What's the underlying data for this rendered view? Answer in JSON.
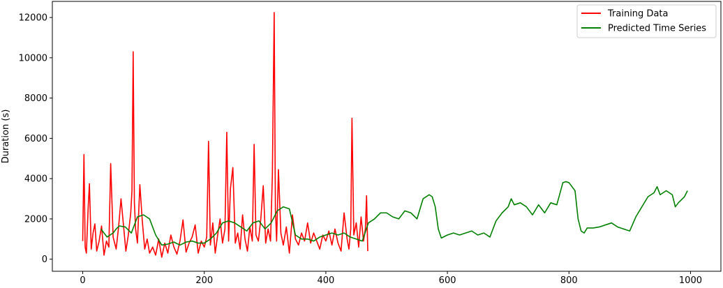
{
  "chart_data": {
    "type": "line",
    "title": "",
    "xlabel": "",
    "ylabel": "Duration (s)",
    "xlim": [
      -50,
      1050
    ],
    "ylim": [
      -600,
      12800
    ],
    "xticks": [
      0,
      200,
      400,
      600,
      800,
      1000
    ],
    "xtick_labels": [
      "0",
      "200",
      "400",
      "600",
      "800",
      "1000"
    ],
    "yticks": [
      0,
      2000,
      4000,
      6000,
      8000,
      10000,
      12000
    ],
    "ytick_labels": [
      "0",
      "2000",
      "4000",
      "6000",
      "8000",
      "10000",
      "12000"
    ],
    "grid": false,
    "legend_position": "top-right",
    "series": [
      {
        "name": "Training Data",
        "color": "#ff0000",
        "x": [
          0,
          2,
          4,
          6,
          9,
          11,
          14,
          17,
          20,
          23,
          27,
          31,
          35,
          39,
          43,
          46,
          50,
          55,
          59,
          63,
          67,
          71,
          75,
          79,
          81,
          83,
          85,
          87,
          90,
          94,
          98,
          102,
          106,
          110,
          115,
          120,
          125,
          130,
          135,
          140,
          145,
          150,
          155,
          160,
          165,
          170,
          175,
          180,
          185,
          190,
          195,
          200,
          204,
          207,
          210,
          214,
          218,
          222,
          226,
          230,
          234,
          237,
          240,
          243,
          247,
          251,
          255,
          259,
          263,
          267,
          271,
          275,
          279,
          282,
          285,
          289,
          293,
          297,
          301,
          305,
          309,
          312,
          315,
          317,
          319,
          322,
          326,
          330,
          335,
          340,
          345,
          350,
          355,
          360,
          365,
          370,
          375,
          380,
          385,
          390,
          395,
          400,
          405,
          410,
          415,
          420,
          425,
          430,
          435,
          438,
          441,
          443,
          446,
          450,
          454,
          458,
          462,
          465,
          467,
          469
        ],
        "y": [
          900,
          5200,
          600,
          300,
          2600,
          3750,
          500,
          1300,
          1750,
          400,
          900,
          1650,
          200,
          900,
          600,
          4750,
          1100,
          500,
          1600,
          3000,
          1700,
          400,
          1200,
          2300,
          3400,
          10300,
          2800,
          1500,
          800,
          3700,
          1900,
          500,
          1000,
          300,
          600,
          200,
          1000,
          100,
          800,
          300,
          1200,
          600,
          250,
          900,
          1950,
          350,
          800,
          1100,
          1700,
          300,
          900,
          600,
          1100,
          5850,
          700,
          1800,
          300,
          1200,
          2000,
          800,
          1500,
          6300,
          900,
          3500,
          4550,
          800,
          1300,
          500,
          2200,
          1000,
          400,
          1600,
          900,
          5700,
          1200,
          900,
          2000,
          3650,
          800,
          1500,
          900,
          4150,
          12250,
          2500,
          900,
          4450,
          1300,
          700,
          1600,
          300,
          2200,
          1000,
          700,
          1300,
          900,
          1800,
          800,
          1300,
          900,
          500,
          1200,
          900,
          1400,
          700,
          1500,
          800,
          400,
          2300,
          1000,
          500,
          1500,
          7000,
          1200,
          1800,
          600,
          2100,
          900,
          1500,
          3150,
          400
        ]
      },
      {
        "name": "Predicted Time Series",
        "color": "#008000",
        "x": [
          30,
          40,
          50,
          55,
          60,
          70,
          80,
          90,
          100,
          110,
          120,
          130,
          140,
          150,
          160,
          170,
          180,
          190,
          200,
          210,
          220,
          230,
          240,
          250,
          260,
          270,
          280,
          290,
          300,
          310,
          320,
          330,
          340,
          350,
          360,
          370,
          380,
          390,
          400,
          410,
          420,
          430,
          440,
          450,
          460,
          470,
          480,
          490,
          500,
          510,
          520,
          530,
          540,
          550,
          560,
          570,
          575,
          580,
          585,
          590,
          600,
          610,
          620,
          630,
          640,
          650,
          660,
          670,
          680,
          690,
          700,
          705,
          710,
          720,
          730,
          740,
          750,
          760,
          770,
          780,
          790,
          795,
          800,
          810,
          815,
          820,
          825,
          830,
          840,
          850,
          860,
          870,
          880,
          890,
          900,
          910,
          920,
          930,
          940,
          945,
          950,
          960,
          970,
          975,
          980,
          990,
          995
        ],
        "y": [
          1500,
          1100,
          1300,
          1500,
          1650,
          1600,
          1300,
          2100,
          2200,
          2000,
          1200,
          700,
          750,
          850,
          700,
          850,
          900,
          800,
          800,
          1000,
          1300,
          1800,
          1900,
          1800,
          1600,
          1400,
          1800,
          1900,
          1500,
          1800,
          2400,
          2600,
          2500,
          1200,
          1000,
          1000,
          900,
          1100,
          1200,
          1300,
          1200,
          1300,
          1100,
          1000,
          900,
          1800,
          2000,
          2300,
          2300,
          2100,
          2000,
          2400,
          2300,
          2000,
          3000,
          3200,
          3100,
          2600,
          1500,
          1050,
          1200,
          1300,
          1200,
          1300,
          1400,
          1200,
          1300,
          1100,
          1900,
          2300,
          2600,
          3000,
          2700,
          2800,
          2600,
          2200,
          2700,
          2300,
          2800,
          2700,
          3800,
          3850,
          3800,
          3400,
          2000,
          1400,
          1300,
          1550,
          1550,
          1600,
          1700,
          1800,
          1600,
          1500,
          1400,
          2100,
          2600,
          3100,
          3300,
          3600,
          3200,
          3400,
          3200,
          2600,
          2800,
          3100,
          3400
        ]
      }
    ]
  }
}
